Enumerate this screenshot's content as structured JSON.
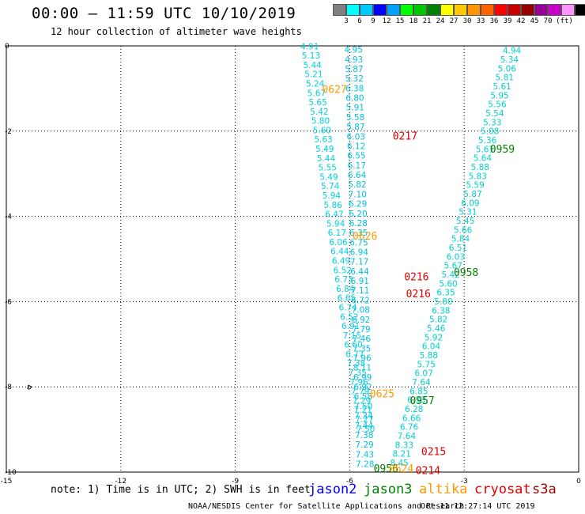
{
  "header": {
    "title": "00:00 – 11:59 UTC 10/10/2019",
    "subtitle": "12 hour collection of altimeter wave heights"
  },
  "legend": {
    "unit": "(ft)",
    "colors": [
      "#808080",
      "#00ffff",
      "#00c8ff",
      "#0000ff",
      "#00a0ff",
      "#00ff00",
      "#00c800",
      "#008000",
      "#ffff00",
      "#ffc800",
      "#ff9600",
      "#ff6400",
      "#ff0000",
      "#c80000",
      "#960000",
      "#960096",
      "#c800c8",
      "#ff96ff",
      "#000000"
    ],
    "labels": [
      "3",
      "6",
      "9",
      "12",
      "15",
      "18",
      "21",
      "24",
      "27",
      "30",
      "33",
      "36",
      "39",
      "42",
      "45",
      "70"
    ]
  },
  "map": {
    "xlim": [
      -15,
      0
    ],
    "ylim": [
      -10,
      0
    ],
    "x_ticks": [
      "-15",
      "-12",
      "-9",
      "-6",
      "-3",
      "0"
    ],
    "y_ticks": [
      "0",
      "-2",
      "-4",
      "-6",
      "-8",
      "-10"
    ],
    "tracks": [
      {
        "name": "cyan-west",
        "color": "#00d0e0",
        "x0": -7.05,
        "y0": -0.08,
        "x1": -5.58,
        "y1": -9.05,
        "values": [
          "4.91",
          "5.13",
          "5.44",
          "5.21",
          "5.24",
          "5.67",
          "5.65",
          "5.42",
          "5.80",
          "5.60",
          "5.63",
          "5.49",
          "5.44",
          "5.55",
          "5.49",
          "5.74",
          "5.94",
          "5.86",
          "6.47",
          "5.94",
          "6.17",
          "6.06",
          "6.44",
          "6.49",
          "6.52",
          "6.73",
          "6.84",
          "6.65",
          "6.74",
          "6.52",
          "6.91",
          "7.15",
          "6.60",
          "6.77",
          "7.38",
          "7.35",
          "7.96",
          "7.79",
          "7.29",
          "7.21",
          "7.27",
          "7.50"
        ]
      },
      {
        "name": "cyan-middle",
        "color": "#00c0e0",
        "x0": -5.9,
        "y0": -0.16,
        "x1": -5.6,
        "y1": -9.88,
        "values": [
          "4.95",
          "4.93",
          "5.87",
          "5.32",
          "6.38",
          "6.80",
          "5.91",
          "5.58",
          "5.87",
          "6.03",
          "6.12",
          "6.55",
          "6.17",
          "6.64",
          "5.82",
          "7.10",
          "6.29",
          "6.20",
          "6.28",
          "6.35",
          "6.75",
          "6.94",
          "7.17",
          "6.44",
          "6.91",
          "7.11",
          "6.72",
          "7.08",
          "6.92",
          "7.79",
          "7.46",
          "7.35",
          "7.96",
          "8.11",
          "6.99",
          "6.92",
          "6.58",
          "7.50",
          "7.34",
          "7.44",
          "7.38",
          "7.29",
          "7.43",
          "7.28"
        ]
      },
      {
        "name": "cyan-east",
        "color": "#00d0d0",
        "x0": -1.75,
        "y0": -0.18,
        "x1": -4.7,
        "y1": -9.85,
        "values": [
          "4.94",
          "5.34",
          "5.06",
          "5.81",
          "5.61",
          "5.95",
          "5.56",
          "5.54",
          "5.33",
          "5.08",
          "5.36",
          "5.61",
          "5.64",
          "5.88",
          "5.83",
          "5.59",
          "5.87",
          "6.09",
          "5.31",
          "5.45",
          "5.66",
          "5.84",
          "6.51",
          "6.03",
          "5.67",
          "5.42",
          "5.60",
          "6.35",
          "5.80",
          "6.38",
          "5.82",
          "5.46",
          "5.92",
          "6.04",
          "5.88",
          "5.75",
          "6.07",
          "7.64",
          "6.85",
          "6.33",
          "6.28",
          "6.66",
          "6.76",
          "7.64",
          "8.33",
          "8.21",
          "8.45"
        ]
      }
    ],
    "annotations": [
      {
        "text": "0627",
        "x": -6.4,
        "y": -1.1,
        "color": "#ff9900"
      },
      {
        "text": "0217",
        "x": -4.55,
        "y": -2.2,
        "color": "#dd0000"
      },
      {
        "text": "0959",
        "x": -2.0,
        "y": -2.5,
        "color": "#008000"
      },
      {
        "text": "0626",
        "x": -5.6,
        "y": -4.55,
        "color": "#ff9900"
      },
      {
        "text": "0958",
        "x": -2.95,
        "y": -5.4,
        "color": "#008000"
      },
      {
        "text": "0216",
        "x": -4.25,
        "y": -5.5,
        "color": "#dd0000"
      },
      {
        "text": "0216",
        "x": -4.2,
        "y": -5.9,
        "color": "#dd0000"
      },
      {
        "text": "0625",
        "x": -5.15,
        "y": -8.25,
        "color": "#ff9900"
      },
      {
        "text": "0957",
        "x": -4.1,
        "y": -8.4,
        "color": "#008000"
      },
      {
        "text": "0215",
        "x": -3.8,
        "y": -9.6,
        "color": "#dd0000"
      },
      {
        "text": "0956",
        "x": -5.05,
        "y": -10.0,
        "color": "#008000"
      },
      {
        "text": "0624",
        "x": -4.65,
        "y": -10.0,
        "color": "#ff9900"
      },
      {
        "text": "0214",
        "x": -3.95,
        "y": -10.05,
        "color": "#dd0000"
      }
    ]
  },
  "footer": {
    "note": "note: 1) Time is in UTC; 2) SWH is in feet",
    "satellites": [
      {
        "name": "jason2",
        "color": "#0000ff"
      },
      {
        "name": "jason3",
        "color": "#008000"
      },
      {
        "name": "altika",
        "color": "#ff9900"
      },
      {
        "name": "cryosat",
        "color": "#dd0000"
      },
      {
        "name": "s3a",
        "color": "#990000"
      }
    ],
    "credit": "NOAA/NESDIS Center for Satellite Applications and Research",
    "timestamp": "Oct 11 12:27:14 UTC 2019"
  }
}
